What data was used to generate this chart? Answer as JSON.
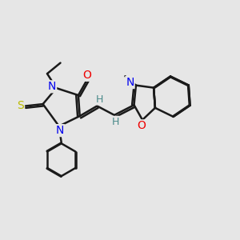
{
  "background_color": "#e6e6e6",
  "bond_color": "#1a1a1a",
  "N_color": "#0000ee",
  "O_color": "#ee0000",
  "S_color": "#bbbb00",
  "H_color": "#4a8a8a",
  "line_width": 1.8,
  "figsize": [
    3.0,
    3.0
  ],
  "dpi": 100,
  "xlim": [
    0,
    10
  ],
  "ylim": [
    0,
    10
  ]
}
